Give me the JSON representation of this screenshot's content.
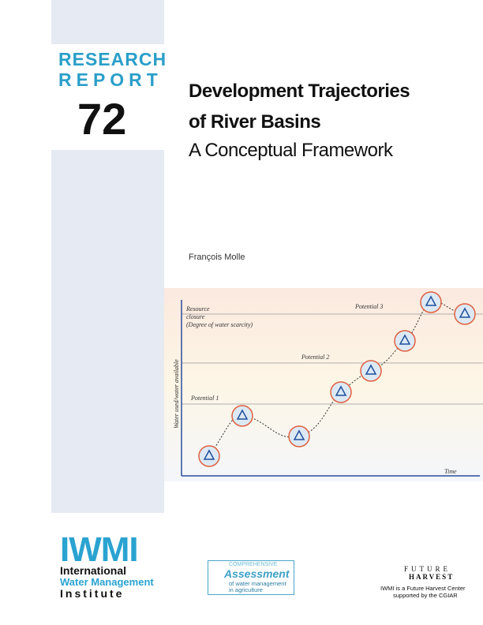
{
  "series_label": {
    "line1": "RESEARCH",
    "line2": "REPORT",
    "number": "72"
  },
  "title": {
    "line1": "Development Trajectories",
    "line2": "of River Basins",
    "subtitle": "A Conceptual Framework"
  },
  "author": "François Molle",
  "figure": {
    "resource_closure": "Resource",
    "closure": "closure",
    "degree": "(Degree of water scarcity)",
    "potential_3": "Potential 3",
    "potential_2": "Potential 2",
    "potential_1": "Potential 1",
    "y_axis": "Water used/water available",
    "x_axis": "Time"
  },
  "logos": {
    "iwmi": {
      "acronym": "IWMI",
      "line1": "International",
      "line2": "Water Management",
      "line3": "Institute"
    },
    "ca": {
      "line1": "COMPREHENSIVE",
      "line2": "Assessment",
      "line3": "of water management",
      "line4": "in agriculture"
    },
    "fh": {
      "line1": "FUTURE",
      "line2": "HARVEST",
      "line3": "IWMI is a Future Harvest Center",
      "line4": "supported by the CGIAR"
    }
  }
}
